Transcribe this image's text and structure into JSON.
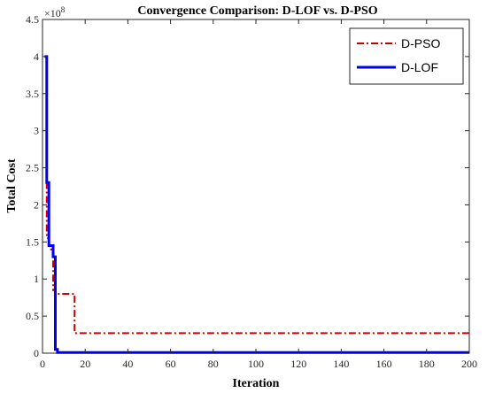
{
  "chart_data": {
    "type": "line",
    "title": "Convergence Comparison: D-LOF vs.  D-PSO",
    "xlabel": "Iteration",
    "ylabel": "Total Cost",
    "y_exponent_label": "×10",
    "y_exponent_power": "8",
    "xlim": [
      0,
      200
    ],
    "ylim": [
      0,
      4.5
    ],
    "xticks": [
      0,
      20,
      40,
      60,
      80,
      100,
      120,
      140,
      160,
      180,
      200
    ],
    "yticks": [
      0,
      0.5,
      1,
      1.5,
      2,
      2.5,
      3,
      3.5,
      4,
      4.5
    ],
    "xtick_labels": [
      "0",
      "20",
      "40",
      "60",
      "80",
      "100",
      "120",
      "140",
      "160",
      "180",
      "200"
    ],
    "ytick_labels": [
      "0",
      "0.5",
      "1",
      "1.5",
      "2",
      "2.5",
      "3",
      "3.5",
      "4",
      "4.5"
    ],
    "grid": false,
    "legend_position": "top-right",
    "series": [
      {
        "name": "D-PSO",
        "color": "#cc0000",
        "style": "dash-dot",
        "x": [
          1,
          2,
          2,
          3,
          3,
          4,
          4,
          5,
          5,
          6,
          6,
          15,
          15,
          200
        ],
        "y": [
          4.0,
          4.0,
          1.55,
          1.55,
          1.45,
          1.45,
          1.4,
          1.4,
          0.85,
          0.85,
          0.8,
          0.8,
          0.27,
          0.27
        ]
      },
      {
        "name": "D-LOF",
        "color": "#0000ee",
        "style": "solid",
        "x": [
          1,
          2,
          2,
          3,
          3,
          4,
          4,
          5,
          5,
          6,
          6,
          7,
          7,
          200
        ],
        "y": [
          4.0,
          4.0,
          2.3,
          2.3,
          1.45,
          1.45,
          1.45,
          1.45,
          1.3,
          1.3,
          0.05,
          0.05,
          0.01,
          0.01
        ]
      }
    ]
  }
}
